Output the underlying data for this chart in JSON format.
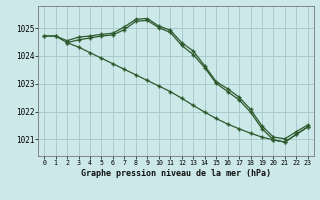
{
  "title": "Graphe pression niveau de la mer (hPa)",
  "bg_color": "#cce8e8",
  "grid_color": "#aacccc",
  "line_color": "#2d5a2d",
  "xlim": [
    -0.5,
    23.5
  ],
  "ylim": [
    1020.4,
    1025.8
  ],
  "yticks": [
    1021,
    1022,
    1023,
    1024,
    1025
  ],
  "xticks": [
    0,
    1,
    2,
    3,
    4,
    5,
    6,
    7,
    8,
    9,
    10,
    11,
    12,
    13,
    14,
    15,
    16,
    17,
    18,
    19,
    20,
    21,
    22,
    23
  ],
  "line1_x": [
    0,
    1,
    2,
    3,
    4,
    5,
    6,
    7,
    8,
    9,
    10,
    11,
    12,
    13,
    14,
    15,
    16,
    17,
    18,
    19,
    20,
    21,
    22,
    23
  ],
  "line1_y": [
    1024.72,
    1024.72,
    1024.55,
    1024.68,
    1024.72,
    1024.78,
    1024.82,
    1025.05,
    1025.32,
    1025.35,
    1025.08,
    1024.93,
    1024.48,
    1024.18,
    1023.65,
    1023.08,
    1022.82,
    1022.52,
    1022.08,
    1021.48,
    1021.08,
    1021.02,
    1021.28,
    1021.52
  ],
  "line2_x": [
    0,
    1,
    2,
    3,
    4,
    5,
    6,
    7,
    8,
    9,
    10,
    11,
    12,
    13,
    14,
    15,
    16,
    17,
    18,
    19,
    20,
    21,
    22,
    23
  ],
  "line2_y": [
    1024.72,
    1024.72,
    1024.48,
    1024.58,
    1024.65,
    1024.72,
    1024.76,
    1024.95,
    1025.25,
    1025.28,
    1025.02,
    1024.85,
    1024.38,
    1024.05,
    1023.58,
    1023.02,
    1022.72,
    1022.42,
    1021.98,
    1021.38,
    1020.98,
    1020.9,
    1021.18,
    1021.45
  ],
  "line3_x": [
    2,
    3,
    4,
    5,
    6,
    7,
    8,
    9,
    10,
    11,
    12,
    13,
    14,
    15,
    16,
    17,
    18,
    19,
    20,
    21,
    22,
    23
  ],
  "line3_y": [
    1024.48,
    1024.32,
    1024.12,
    1023.92,
    1023.72,
    1023.52,
    1023.32,
    1023.12,
    1022.92,
    1022.72,
    1022.48,
    1022.22,
    1021.98,
    1021.75,
    1021.55,
    1021.38,
    1021.22,
    1021.08,
    1020.98,
    1020.9,
    1021.18,
    1021.45
  ]
}
